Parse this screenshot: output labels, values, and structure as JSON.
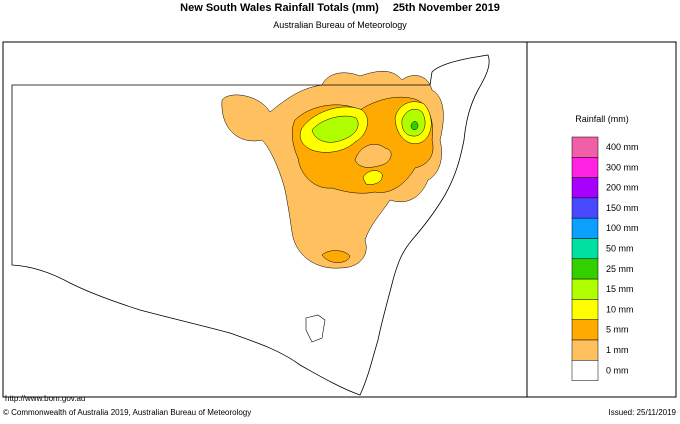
{
  "header": {
    "title": "New South Wales Rainfall Totals (mm)",
    "date": "25th November 2019",
    "subtitle": "Australian Bureau of Meteorology"
  },
  "legend": {
    "title": "Rainfall (mm)",
    "items": [
      {
        "label": "400 mm",
        "color": "#f060a8"
      },
      {
        "label": "300 mm",
        "color": "#ff22e0"
      },
      {
        "label": "200 mm",
        "color": "#a800ff"
      },
      {
        "label": "150 mm",
        "color": "#4848ff"
      },
      {
        "label": "100 mm",
        "color": "#0aa0ff"
      },
      {
        "label": "50 mm",
        "color": "#00e0a0"
      },
      {
        "label": "25 mm",
        "color": "#33d000"
      },
      {
        "label": "15 mm",
        "color": "#b0ff00"
      },
      {
        "label": "10 mm",
        "color": "#ffff00"
      },
      {
        "label": "5 mm",
        "color": "#ffaa00"
      },
      {
        "label": "1 mm",
        "color": "#ffc060"
      },
      {
        "label": "0 mm",
        "color": "#ffffff"
      }
    ]
  },
  "footer": {
    "url": "http://www.bom.gov.au",
    "copyright": "© Commonwealth of Australia 2019, Australian Bureau of Meteorology",
    "issued": "Issued: 25/11/2019"
  }
}
